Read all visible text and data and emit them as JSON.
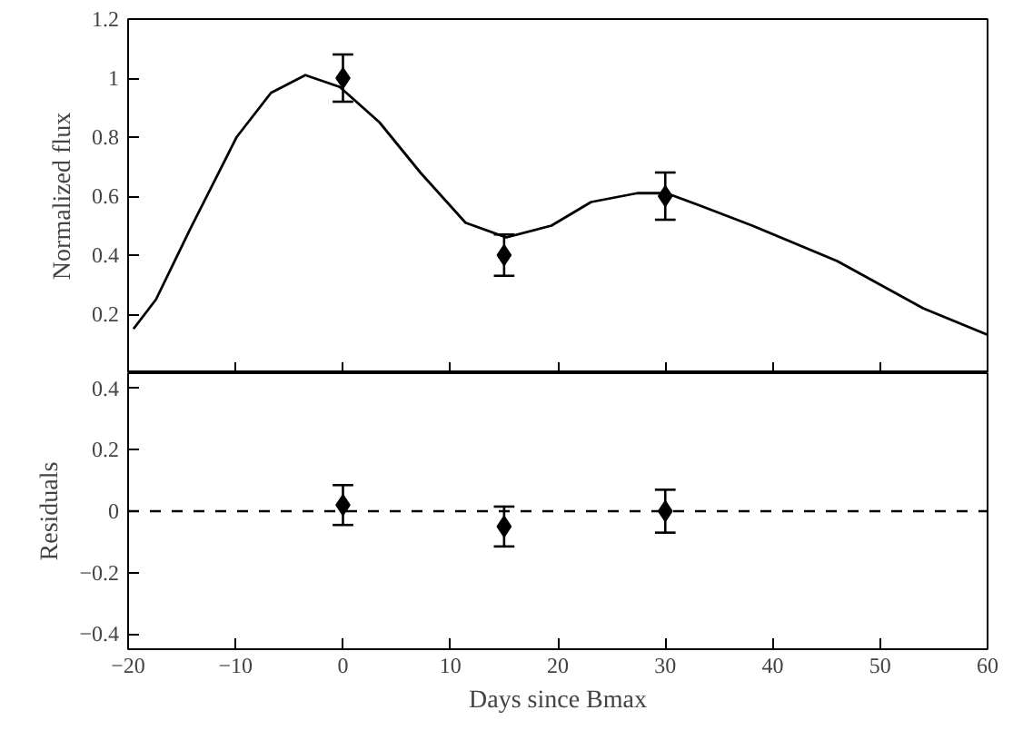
{
  "chart_data": [
    {
      "type": "scatter",
      "ylabel": "Normalized flux",
      "xlim": [
        -20,
        60
      ],
      "ylim": [
        0,
        1.2
      ],
      "xticks": [
        -20,
        -10,
        0,
        10,
        20,
        30,
        40,
        50,
        60
      ],
      "yticks": [
        0.2,
        0.4,
        0.6,
        0.8,
        1,
        1.2
      ],
      "tick_labels": "y",
      "grid": false,
      "series": [
        {
          "color": "#000000",
          "marker": "diamond",
          "x": [
            0,
            15,
            30
          ],
          "values": [
            1.0,
            0.4,
            0.6
          ],
          "errors": [
            0.08,
            0.07,
            0.08
          ]
        },
        {
          "type": "line",
          "color": "#000000",
          "line_style": "solid",
          "x": [
            -19.5,
            -17.4,
            -14.2,
            -9.9,
            -6.7,
            -3.5,
            -0.3,
            3.4,
            7.2,
            11.4,
            15.2,
            19.4,
            23.1,
            27.4,
            30.1,
            33.8,
            38.1,
            46,
            54,
            60
          ],
          "values": [
            0.15,
            0.25,
            0.49,
            0.8,
            0.95,
            1.01,
            0.97,
            0.85,
            0.68,
            0.51,
            0.46,
            0.5,
            0.58,
            0.61,
            0.61,
            0.56,
            0.5,
            0.38,
            0.22,
            0.13
          ]
        }
      ]
    },
    {
      "type": "scatter",
      "xlabel": "Days since Bmax",
      "ylabel": "Residuals",
      "xlim": [
        -20,
        60
      ],
      "ylim": [
        -0.45,
        0.45
      ],
      "xticks": [
        -20,
        -10,
        0,
        10,
        20,
        30,
        40,
        50,
        60
      ],
      "yticks": [
        -0.4,
        -0.2,
        0,
        0.2,
        0.4
      ],
      "grid": false,
      "ref_lines": [
        {
          "axis": "y",
          "value": 0,
          "line_style": "dashed",
          "color": "#000000"
        }
      ],
      "series": [
        {
          "color": "#000000",
          "marker": "diamond",
          "x": [
            0,
            15,
            30
          ],
          "values": [
            0.02,
            -0.05,
            0.0
          ],
          "errors": [
            0.065,
            0.065,
            0.07
          ]
        }
      ]
    }
  ]
}
